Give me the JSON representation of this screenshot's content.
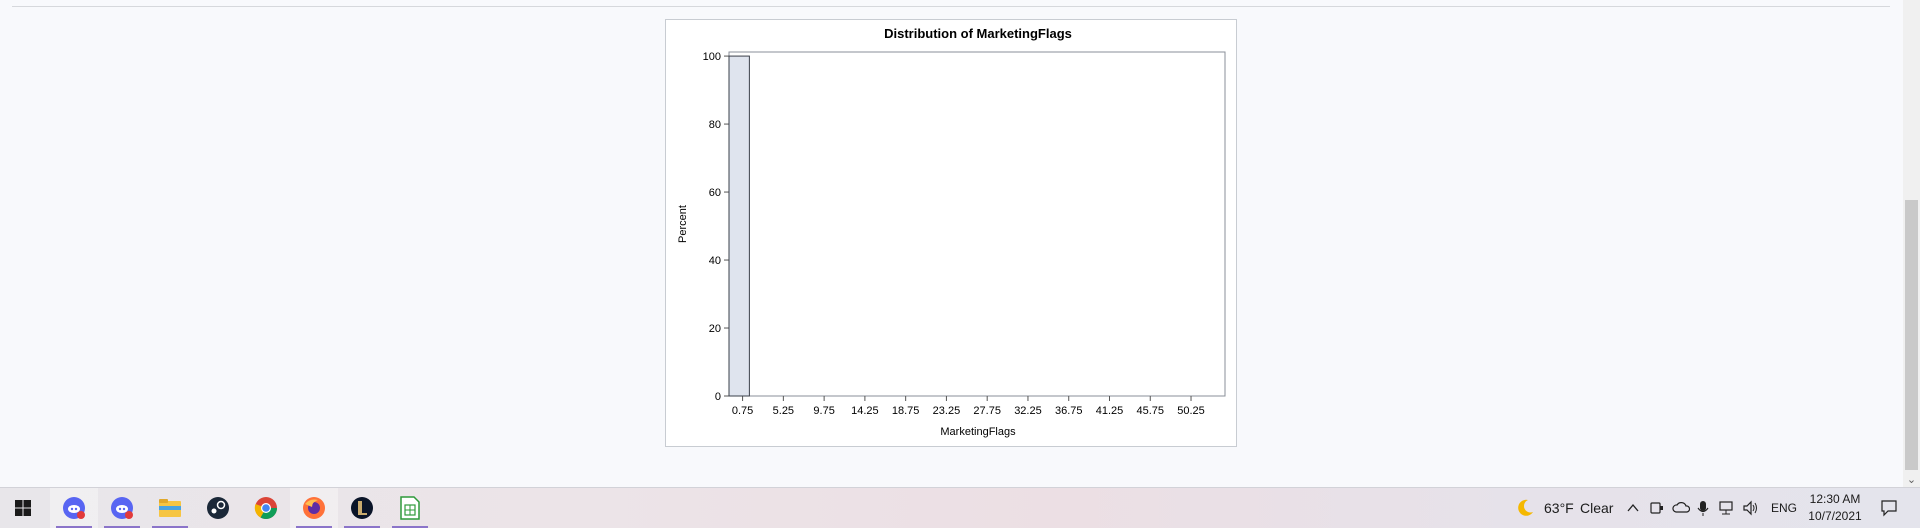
{
  "chart_data": {
    "type": "bar",
    "title": "Distribution of MarketingFlags",
    "xlabel": "MarketingFlags",
    "ylabel": "Percent",
    "x_ticks": [
      "0.75",
      "5.25",
      "9.75",
      "14.25",
      "18.75",
      "23.25",
      "27.75",
      "32.25",
      "36.75",
      "41.25",
      "45.75",
      "50.25"
    ],
    "y_ticks": [
      0,
      20,
      40,
      60,
      80,
      100
    ],
    "xlim": [
      -0.75,
      54.0
    ],
    "ylim": [
      0,
      101.2
    ],
    "bins": [
      {
        "from": -0.75,
        "to": 1.5,
        "percent": 100
      }
    ],
    "bar_fill": "#dfe4ee",
    "bar_stroke": "#3a3f4a"
  },
  "weather": {
    "temp": "63°F",
    "cond": "Clear"
  },
  "tray": {
    "lang": "ENG"
  },
  "clock": {
    "time": "12:30 AM",
    "date": "10/7/2021"
  }
}
